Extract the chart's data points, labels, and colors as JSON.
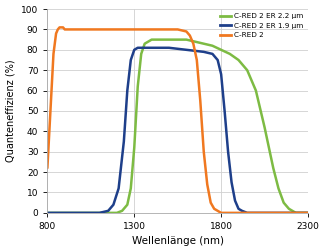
{
  "xlabel": "Wellenlänge (nm)",
  "ylabel": "Quanteneffizienz (%)",
  "xlim": [
    800,
    2300
  ],
  "ylim": [
    0,
    100
  ],
  "xticks": [
    800,
    1300,
    1800,
    2300
  ],
  "yticks": [
    0,
    10,
    20,
    30,
    40,
    50,
    60,
    70,
    80,
    90,
    100
  ],
  "legend": [
    {
      "label": "C-RED 2 ER 2.2 μm",
      "color": "#7dbb43"
    },
    {
      "label": "C-RED 2 ER 1.9 μm",
      "color": "#1e3f8a"
    },
    {
      "label": "C-RED 2",
      "color": "#f07820"
    }
  ],
  "curves": {
    "cred2_er22": {
      "color": "#7dbb43",
      "lw": 1.8,
      "x": [
        800,
        900,
        950,
        1000,
        1050,
        1100,
        1150,
        1200,
        1230,
        1260,
        1280,
        1300,
        1320,
        1340,
        1360,
        1400,
        1450,
        1500,
        1550,
        1600,
        1650,
        1700,
        1750,
        1800,
        1850,
        1900,
        1950,
        2000,
        2050,
        2100,
        2130,
        2160,
        2190,
        2210,
        2230,
        2250,
        2270,
        2290,
        2300
      ],
      "y": [
        0,
        0,
        0,
        0,
        0,
        0,
        0,
        0,
        1,
        4,
        12,
        32,
        62,
        78,
        83,
        85,
        85,
        85,
        85,
        85,
        84,
        83,
        82,
        80,
        78,
        75,
        70,
        60,
        42,
        22,
        12,
        5,
        2,
        1,
        0,
        0,
        0,
        0,
        0
      ]
    },
    "cred2_er19": {
      "color": "#1e3f8a",
      "lw": 1.8,
      "x": [
        800,
        900,
        950,
        1000,
        1050,
        1100,
        1150,
        1180,
        1210,
        1240,
        1260,
        1280,
        1300,
        1320,
        1350,
        1400,
        1500,
        1600,
        1700,
        1750,
        1780,
        1800,
        1820,
        1840,
        1860,
        1880,
        1900,
        1920,
        1950,
        2000,
        2300
      ],
      "y": [
        0,
        0,
        0,
        0,
        0,
        0,
        1,
        4,
        12,
        35,
        60,
        75,
        80,
        81,
        81,
        81,
        81,
        80,
        79,
        78,
        75,
        68,
        50,
        30,
        15,
        6,
        2,
        1,
        0,
        0,
        0
      ]
    },
    "cred2": {
      "color": "#f07820",
      "lw": 1.8,
      "x": [
        800,
        835,
        850,
        860,
        870,
        880,
        890,
        900,
        950,
        1000,
        1100,
        1200,
        1300,
        1400,
        1500,
        1550,
        1600,
        1620,
        1640,
        1660,
        1680,
        1700,
        1720,
        1740,
        1760,
        1780,
        1800,
        2300
      ],
      "y": [
        22,
        78,
        88,
        90,
        91,
        91,
        91,
        90,
        90,
        90,
        90,
        90,
        90,
        90,
        90,
        90,
        89,
        87,
        83,
        75,
        55,
        30,
        14,
        5,
        2,
        1,
        0,
        0
      ]
    }
  },
  "background_color": "#ffffff",
  "grid_color": "#d0d0d0",
  "figsize": [
    3.25,
    2.52
  ],
  "dpi": 100
}
